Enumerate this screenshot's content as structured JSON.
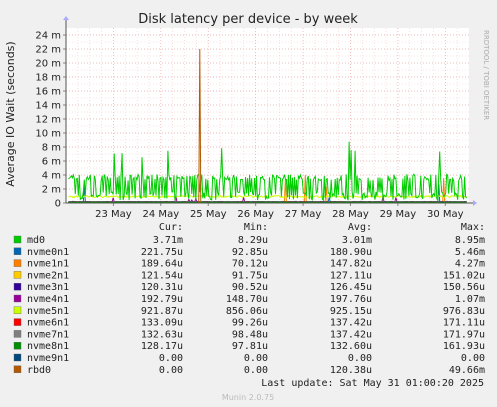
{
  "chart_data": {
    "type": "line",
    "title": "Disk latency per device - by week",
    "ylabel": "Average IO Wait (seconds)",
    "side_label": "RRDTOOL / TOBI OETIKER",
    "ylim": [
      0,
      25
    ],
    "y_ticks": [
      {
        "value": 0,
        "label": "0"
      },
      {
        "value": 2,
        "label": "2 m"
      },
      {
        "value": 4,
        "label": "4 m"
      },
      {
        "value": 6,
        "label": "6 m"
      },
      {
        "value": 8,
        "label": "8 m"
      },
      {
        "value": 10,
        "label": "10 m"
      },
      {
        "value": 12,
        "label": "12 m"
      },
      {
        "value": 14,
        "label": "14 m"
      },
      {
        "value": 16,
        "label": "16 m"
      },
      {
        "value": 18,
        "label": "18 m"
      },
      {
        "value": 20,
        "label": "20 m"
      },
      {
        "value": 22,
        "label": "22 m"
      },
      {
        "value": 24,
        "label": "24 m"
      }
    ],
    "xlim": [
      0,
      8.5
    ],
    "x_ticks": [
      {
        "value": 1,
        "label": "23 May"
      },
      {
        "value": 2,
        "label": "24 May"
      },
      {
        "value": 3,
        "label": "25 May"
      },
      {
        "value": 4,
        "label": "26 May"
      },
      {
        "value": 5,
        "label": "27 May"
      },
      {
        "value": 6,
        "label": "28 May"
      },
      {
        "value": 7,
        "label": "29 May"
      },
      {
        "value": 8,
        "label": "30 May"
      }
    ],
    "grid": true,
    "headers": [
      "Cur:",
      "Min:",
      "Avg:",
      "Max:"
    ],
    "series": [
      {
        "name": "md0",
        "color": "#00cc00",
        "cur": "3.71m",
        "min": "8.29u",
        "avg": "3.01m",
        "max": "8.95m"
      },
      {
        "name": "nvme0n1",
        "color": "#0066b3",
        "cur": "221.75u",
        "min": "92.85u",
        "avg": "180.90u",
        "max": "5.46m"
      },
      {
        "name": "nvme1n1",
        "color": "#ff8000",
        "cur": "189.64u",
        "min": "70.12u",
        "avg": "147.82u",
        "max": "4.27m"
      },
      {
        "name": "nvme2n1",
        "color": "#ffcc00",
        "cur": "121.54u",
        "min": "91.75u",
        "avg": "127.11u",
        "max": "151.02u"
      },
      {
        "name": "nvme3n1",
        "color": "#330099",
        "cur": "120.31u",
        "min": "90.52u",
        "avg": "126.45u",
        "max": "150.56u"
      },
      {
        "name": "nvme4n1",
        "color": "#990099",
        "cur": "192.79u",
        "min": "148.70u",
        "avg": "197.76u",
        "max": "1.07m"
      },
      {
        "name": "nvme5n1",
        "color": "#ccff00",
        "cur": "921.87u",
        "min": "856.06u",
        "avg": "925.15u",
        "max": "976.83u"
      },
      {
        "name": "nvme6n1",
        "color": "#ff0000",
        "cur": "133.09u",
        "min": "99.26u",
        "avg": "137.42u",
        "max": "171.11u"
      },
      {
        "name": "nvme7n1",
        "color": "#808080",
        "cur": "132.63u",
        "min": "98.48u",
        "avg": "137.42u",
        "max": "171.97u"
      },
      {
        "name": "nvme8n1",
        "color": "#008f00",
        "cur": "128.17u",
        "min": "97.81u",
        "avg": "132.60u",
        "max": "161.93u"
      },
      {
        "name": "nvme9n1",
        "color": "#00487d",
        "cur": "0.00",
        "min": "0.00",
        "avg": "0.00",
        "max": "0.00"
      },
      {
        "name": "rbd0",
        "color": "#b35a00",
        "cur": "0.00",
        "min": "0.00",
        "avg": "120.38u",
        "max": "49.66m"
      }
    ],
    "last_update": "Last update: Sat May 31 01:00:20 2025",
    "footer": "Munin 2.0.75"
  }
}
